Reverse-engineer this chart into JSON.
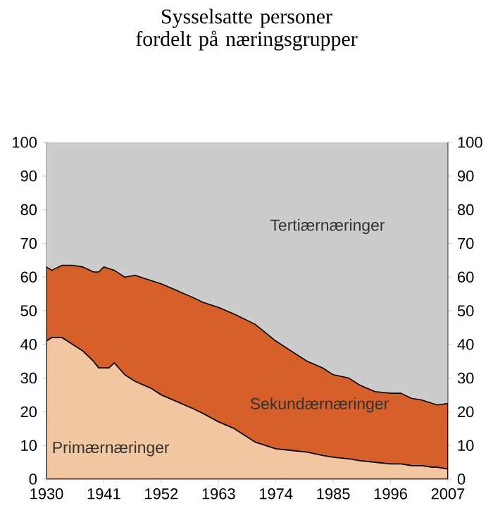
{
  "chart_data": {
    "type": "area",
    "stacked": true,
    "title": "Sysselsatte personer fordelt på næringsgrupper",
    "x": [
      1930,
      1931,
      1933,
      1935,
      1937,
      1939,
      1940,
      1941,
      1942,
      1943,
      1945,
      1947,
      1950,
      1952,
      1955,
      1958,
      1960,
      1963,
      1966,
      1970,
      1972,
      1974,
      1977,
      1980,
      1983,
      1985,
      1988,
      1990,
      1993,
      1996,
      1998,
      2000,
      2002,
      2004,
      2005,
      2007
    ],
    "series": [
      {
        "name": "Primærnæringer",
        "color": "#f2c6a0",
        "values": [
          41,
          42,
          42,
          40,
          38,
          35,
          33,
          33,
          33,
          34.5,
          31,
          29,
          27,
          25,
          23,
          21,
          19.5,
          17,
          15,
          11,
          10,
          9,
          8.5,
          8,
          7,
          6.5,
          6,
          5.5,
          5,
          4.5,
          4.5,
          4,
          4,
          3.5,
          3.5,
          3
        ]
      },
      {
        "name": "Sekundærnæringer",
        "color": "#d65f2a",
        "values": [
          22,
          20,
          21.5,
          23.5,
          25,
          26.5,
          28.5,
          30,
          29.5,
          27.5,
          29,
          31.5,
          32,
          33,
          33,
          33,
          33,
          34,
          34,
          35,
          33.5,
          32,
          29.5,
          27,
          26,
          24.5,
          24,
          22.5,
          21,
          21,
          21,
          20,
          19.5,
          19,
          18.5,
          19.5
        ]
      },
      {
        "name": "Tertiærnæringer",
        "color": "#cccccc",
        "values": [
          37,
          38,
          36.5,
          36.5,
          37,
          38.5,
          38.5,
          37,
          37.5,
          38,
          40,
          39.5,
          41,
          42,
          44,
          46,
          47.5,
          49,
          51,
          54,
          56.5,
          59,
          62,
          65,
          67,
          69,
          70,
          72,
          74,
          74.5,
          74.5,
          76,
          76.5,
          77.5,
          78,
          77.5
        ]
      }
    ],
    "xlim": [
      1930,
      2007
    ],
    "xticks": [
      1930,
      1941,
      1952,
      1963,
      1974,
      1985,
      1996,
      2007
    ],
    "ylim": [
      0,
      100
    ],
    "yticks": [
      0,
      10,
      20,
      30,
      40,
      50,
      60,
      70,
      80,
      90,
      100
    ],
    "y2lim": [
      0,
      100
    ],
    "y2ticks": [
      0,
      10,
      20,
      30,
      40,
      50,
      60,
      70,
      80,
      90,
      100
    ],
    "grid": false
  }
}
